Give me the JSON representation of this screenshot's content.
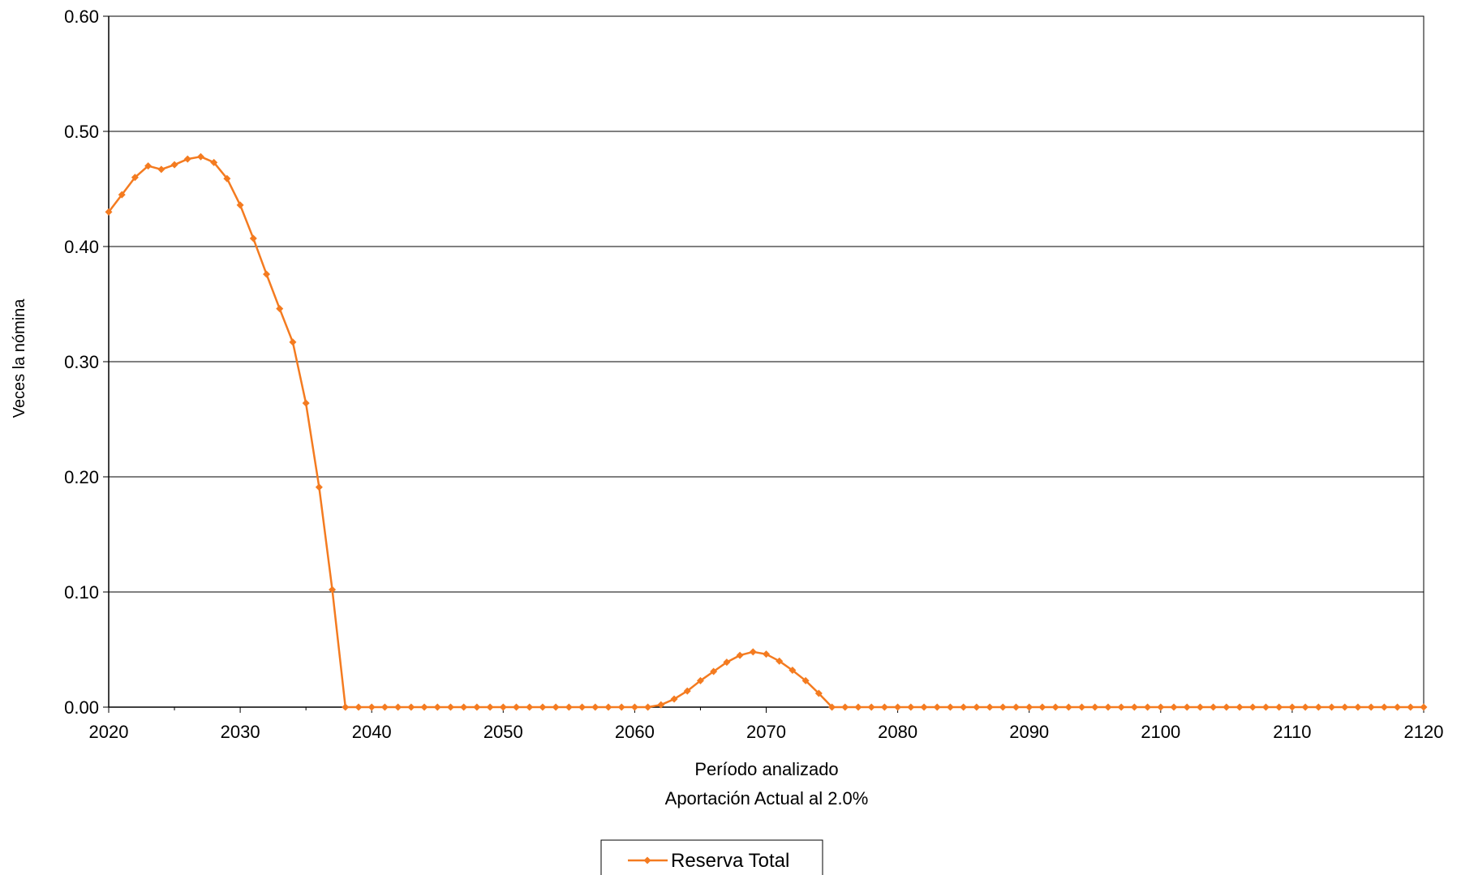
{
  "chart_data": {
    "type": "line",
    "xlabel": "Período analizado",
    "subtitle": "Aportación Actual al 2.0%",
    "ylabel": "Veces la nómina",
    "xlim": [
      2020,
      2120
    ],
    "ylim": [
      0,
      0.6
    ],
    "xticks": [
      "2020",
      "2030",
      "2040",
      "2050",
      "2060",
      "2070",
      "2080",
      "2090",
      "2100",
      "2110",
      "2120"
    ],
    "yticks": [
      "0.00",
      "0.10",
      "0.20",
      "0.30",
      "0.40",
      "0.50",
      "0.60"
    ],
    "grid": "horizontal",
    "legend": "bottom-center",
    "series": [
      {
        "name": "Reserva Total",
        "color": "#F47B20",
        "marker": "diamond",
        "x": [
          2020,
          2021,
          2022,
          2023,
          2024,
          2025,
          2026,
          2027,
          2028,
          2029,
          2030,
          2031,
          2032,
          2033,
          2034,
          2035,
          2036,
          2037,
          2038,
          2039,
          2040,
          2041,
          2042,
          2043,
          2044,
          2045,
          2046,
          2047,
          2048,
          2049,
          2050,
          2051,
          2052,
          2053,
          2054,
          2055,
          2056,
          2057,
          2058,
          2059,
          2060,
          2061,
          2062,
          2063,
          2064,
          2065,
          2066,
          2067,
          2068,
          2069,
          2070,
          2071,
          2072,
          2073,
          2074,
          2075,
          2076,
          2077,
          2078,
          2079,
          2080,
          2081,
          2082,
          2083,
          2084,
          2085,
          2086,
          2087,
          2088,
          2089,
          2090,
          2091,
          2092,
          2093,
          2094,
          2095,
          2096,
          2097,
          2098,
          2099,
          2100,
          2101,
          2102,
          2103,
          2104,
          2105,
          2106,
          2107,
          2108,
          2109,
          2110,
          2111,
          2112,
          2113,
          2114,
          2115,
          2116,
          2117,
          2118,
          2119,
          2120
        ],
        "values": [
          0.43,
          0.445,
          0.46,
          0.47,
          0.467,
          0.471,
          0.476,
          0.478,
          0.473,
          0.459,
          0.436,
          0.407,
          0.376,
          0.346,
          0.317,
          0.264,
          0.191,
          0.102,
          0,
          0,
          0,
          0,
          0,
          0,
          0,
          0,
          0,
          0,
          0,
          0,
          0,
          0,
          0,
          0,
          0,
          0,
          0,
          0,
          0,
          0,
          0,
          0,
          0.002,
          0.007,
          0.014,
          0.023,
          0.031,
          0.039,
          0.045,
          0.048,
          0.046,
          0.04,
          0.032,
          0.023,
          0.012,
          0,
          0,
          0,
          0,
          0,
          0,
          0,
          0,
          0,
          0,
          0,
          0,
          0,
          0,
          0,
          0,
          0,
          0,
          0,
          0,
          0,
          0,
          0,
          0,
          0,
          0,
          0,
          0,
          0,
          0,
          0,
          0,
          0,
          0,
          0,
          0,
          0,
          0,
          0,
          0,
          0,
          0,
          0,
          0,
          0,
          0
        ]
      }
    ]
  }
}
